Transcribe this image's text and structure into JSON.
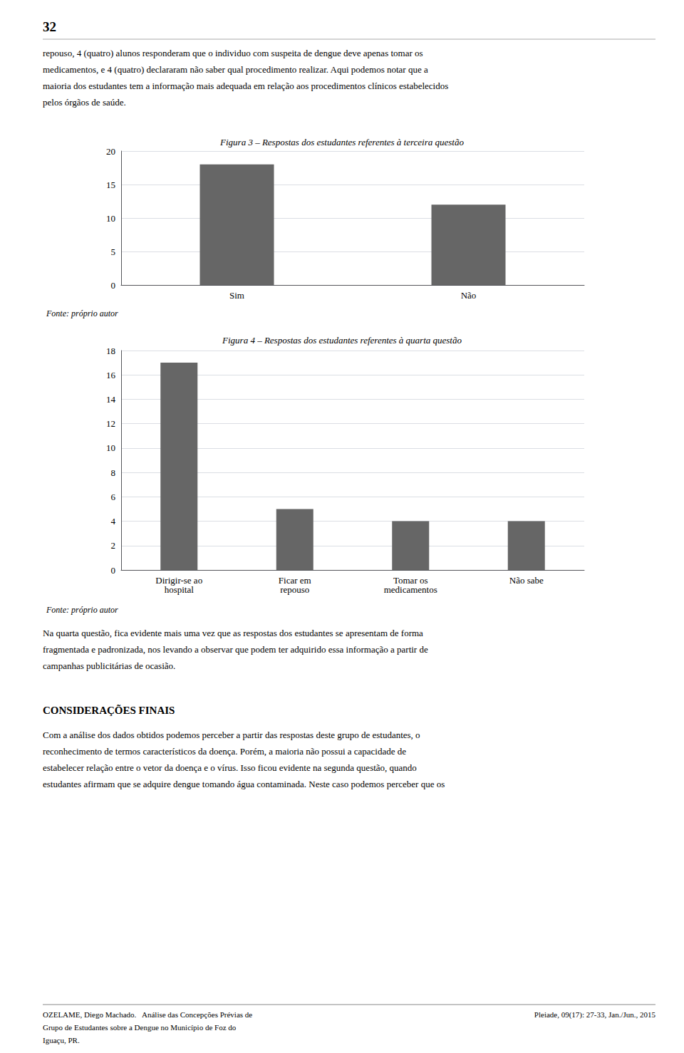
{
  "page_number": "32",
  "intro": [
    "repouso, 4 (quatro) alunos responderam que o individuo com suspeita de dengue deve apenas tomar os",
    "medicamentos, e 4 (quatro) declararam não saber qual procedimento realizar. Aqui podemos notar que a",
    "maioria dos estudantes tem a informação mais adequada em relação aos procedimentos clínicos estabelecidos",
    "pelos órgãos de saúde."
  ],
  "chart_data": [
    {
      "type": "bar",
      "title": "Figura 3 – Respostas dos estudantes referentes à terceira questão",
      "categories": [
        "Sim",
        "Não"
      ],
      "values": [
        18,
        12
      ],
      "color": "#666666",
      "ylim": [
        0,
        20
      ],
      "yticks": [
        0,
        5,
        10,
        15,
        20
      ],
      "grid": true,
      "annotations": [
        "Fonte: próprio autor"
      ]
    },
    {
      "type": "bar",
      "title": "Figura 4 – Respostas dos estudantes referentes à quarta questão",
      "categories": [
        "Dirigir-se ao\nhospital",
        "Ficar em\nrepouso",
        "Tomar os\nmedicamentos",
        "Não sabe"
      ],
      "values": [
        17,
        5,
        4,
        4
      ],
      "color": "#666666",
      "ylim": [
        0,
        18
      ],
      "yticks": [
        0,
        2,
        4,
        6,
        8,
        10,
        12,
        14,
        16,
        18
      ],
      "grid": true,
      "annotations": [
        "Fonte: próprio autor"
      ]
    }
  ],
  "paragraph": [
    "Na quarta questão, fica evidente mais uma vez que as respostas dos estudantes se apresentam de forma",
    "fragmentada e padronizada, nos levando a observar que podem ter adquirido essa informação a partir de",
    "campanhas publicitárias de ocasião."
  ],
  "section_heading": "CONSIDERAÇÕES FINAIS",
  "final": [
    "Com a análise dos dados obtidos podemos perceber a partir das respostas deste grupo de estudantes, o",
    "reconhecimento de termos característicos da doença. Porém, a maioria não possui a capacidade de",
    "estabelecer relação entre o vetor da doença e o vírus. Isso ficou evidente na segunda questão, quando",
    "estudantes afirmam que se adquire dengue tomando água contaminada. Neste caso podemos perceber que os"
  ],
  "footer_left": [
    "OZELAME, Diego Machado.   Análise das Concepções Prévias de",
    "Grupo de Estudantes sobre a Dengue no Município de Foz do",
    "Iguaçu, PR."
  ],
  "footer_right": "Pleiade, 09(17): 27-33, Jan./Jun., 2015"
}
